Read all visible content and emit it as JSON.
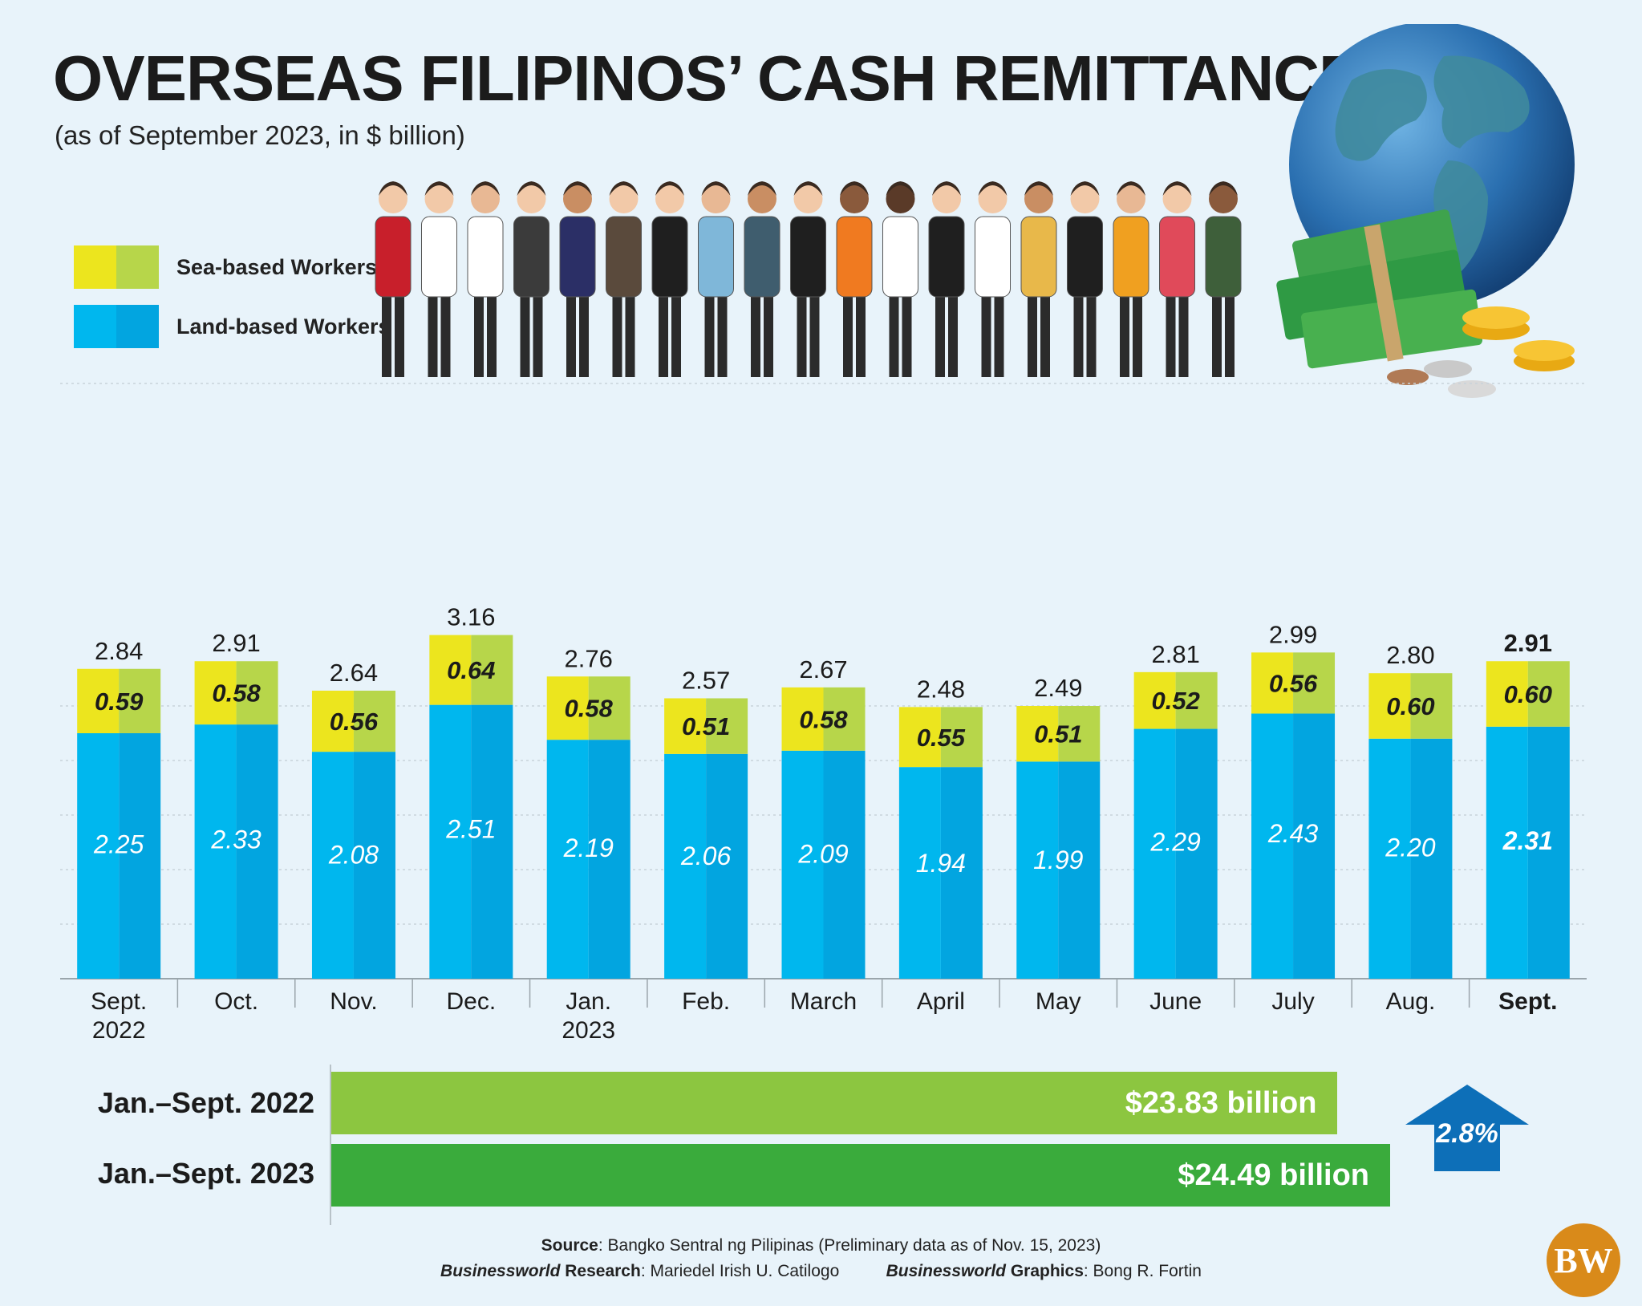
{
  "header": {
    "title": "OVERSEAS FILIPINOS’ CASH REMITTANCES",
    "subtitle": "(as of September 2023, in $ billion)"
  },
  "legend": {
    "sea": "Sea-based Workers",
    "land": "Land-based Workers"
  },
  "colors": {
    "sea_left": "#ece51e",
    "sea_right": "#b7d64a",
    "land_left": "#00b7ee",
    "land_right": "#02a5e0",
    "bar_2022": "#8cc640",
    "bar_2023": "#3aab3c",
    "arrow": "#0d6fb8"
  },
  "chart_data": {
    "type": "bar",
    "stacked": true,
    "title": "OVERSEAS FILIPINOS’ CASH REMITTANCES",
    "subtitle": "(as of September 2023, in $ billion)",
    "categories": [
      [
        "Sept.",
        "2022"
      ],
      [
        "Oct."
      ],
      [
        "Nov."
      ],
      [
        "Dec."
      ],
      [
        "Jan.",
        "2023"
      ],
      [
        "Feb."
      ],
      [
        "March"
      ],
      [
        "April"
      ],
      [
        "May"
      ],
      [
        "June"
      ],
      [
        "July"
      ],
      [
        "Aug."
      ],
      [
        "Sept."
      ]
    ],
    "series": [
      {
        "name": "Land-based Workers",
        "values": [
          2.25,
          2.33,
          2.08,
          2.51,
          2.19,
          2.06,
          2.09,
          1.94,
          1.99,
          2.29,
          2.43,
          2.2,
          2.31
        ],
        "labels": [
          "2.25",
          "2.33",
          "2.08",
          "2.51",
          "2.19",
          "2.06",
          "2.09",
          "1.94",
          "1.99",
          "2.29",
          "2.43",
          "2.20",
          "2.31"
        ]
      },
      {
        "name": "Sea-based Workers",
        "values": [
          0.59,
          0.58,
          0.56,
          0.64,
          0.58,
          0.51,
          0.58,
          0.55,
          0.51,
          0.52,
          0.56,
          0.6,
          0.6
        ],
        "labels": [
          "0.59",
          "0.58",
          "0.56",
          "0.64",
          "0.58",
          "0.51",
          "0.58",
          "0.55",
          "0.51",
          "0.52",
          "0.56",
          "0.60",
          "0.60"
        ]
      }
    ],
    "totals": [
      2.84,
      2.91,
      2.64,
      3.16,
      2.76,
      2.57,
      2.67,
      2.48,
      2.49,
      2.81,
      2.99,
      2.8,
      2.91
    ],
    "total_labels": [
      "2.84",
      "2.91",
      "2.64",
      "3.16",
      "2.76",
      "2.57",
      "2.67",
      "2.48",
      "2.49",
      "2.81",
      "2.99",
      "2.80",
      "2.91"
    ],
    "highlight_index": 12,
    "ylim": [
      0,
      3.2
    ],
    "grid": true,
    "legend_position": "top-left"
  },
  "totals": {
    "rows": [
      {
        "label": "Jan.–Sept. 2022",
        "value": "$23.83 billion",
        "amount": 23.83
      },
      {
        "label": "Jan.–Sept. 2023",
        "value": "$24.49 billion",
        "amount": 24.49
      }
    ],
    "change": "2.8%"
  },
  "footer": {
    "source_label": "Source",
    "source_text": ": Bangko Sentral ng Pilipinas (Preliminary data as of Nov. 15, 2023)",
    "research_brand": "Businessworld",
    "research_label": " Research",
    "research_name": ": Mariedel Irish U. Catilogo",
    "graphics_brand": "Businessworld",
    "graphics_label": " Graphics",
    "graphics_name": ": Bong R. Fortin",
    "logo": "BW"
  }
}
